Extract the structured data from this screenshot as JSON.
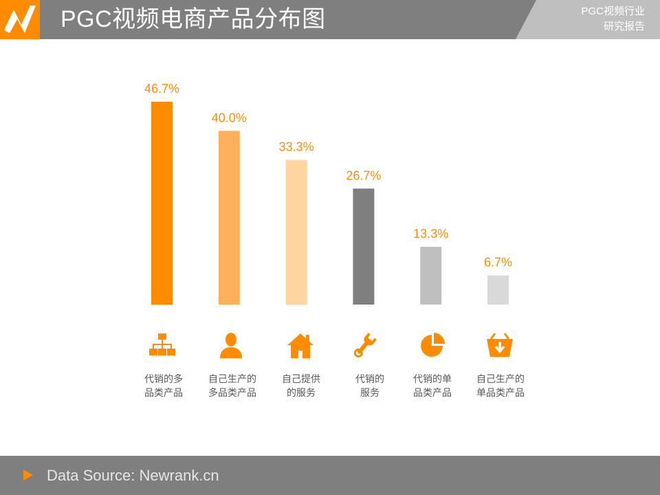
{
  "header": {
    "title": "PGC视频电商产品分布图",
    "corner_line1": "PGC视频行业",
    "corner_line2": "研究报告"
  },
  "footer": {
    "source": "Data Source: Newrank.cn"
  },
  "chart_data": {
    "type": "bar",
    "title": "",
    "xlabel": "",
    "ylabel": "",
    "ylim": [
      0,
      50
    ],
    "grid": false,
    "categories": [
      {
        "line1": "代销的多",
        "line2": "品类产品",
        "icon": "org-chart-icon"
      },
      {
        "line1": "自己生产的",
        "line2": "多品类产品",
        "icon": "person-icon"
      },
      {
        "line1": "自己提供",
        "line2": "的服务",
        "icon": "house-icon"
      },
      {
        "line1": "代销的",
        "line2": "服务",
        "icon": "wrench-icon"
      },
      {
        "line1": "代销的单",
        "line2": "品类产品",
        "icon": "pie-chart-icon"
      },
      {
        "line1": "自己生产的",
        "line2": "单品类产品",
        "icon": "basket-icon"
      }
    ],
    "values": [
      46.7,
      40.0,
      33.3,
      26.7,
      13.3,
      6.7
    ],
    "value_labels": [
      "46.7%",
      "40.0%",
      "33.3%",
      "26.7%",
      "13.3%",
      "6.7%"
    ],
    "colors": [
      "#ff8c00",
      "#ffb05a",
      "#ffd59f",
      "#7f7f7f",
      "#bfbfbf",
      "#d9d9d9"
    ],
    "label_color": "#ff8c00",
    "icon_color": "#ff8c00"
  }
}
